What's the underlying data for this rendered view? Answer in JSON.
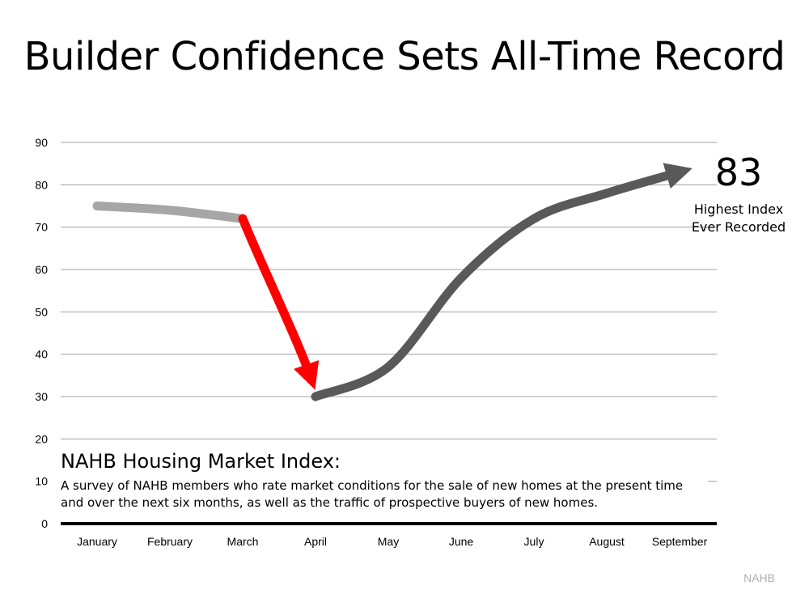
{
  "title": "Builder Confidence Sets All-Time Record",
  "callout": {
    "value": "83",
    "line1": "Highest Index",
    "line2": "Ever Recorded"
  },
  "description": {
    "heading": "NAHB Housing Market Index:",
    "body": "A survey of NAHB members who rate market conditions for the sale of new homes at the present time and over the next six months, as well as the traffic of prospective buyers of new homes."
  },
  "source": "NAHB",
  "chart_data": {
    "type": "line",
    "title": "Builder Confidence Sets All-Time Record",
    "categories": [
      "January",
      "February",
      "March",
      "April",
      "May",
      "June",
      "July",
      "August",
      "September"
    ],
    "yticks": [
      "0",
      "10",
      "20",
      "30",
      "40",
      "50",
      "60",
      "70",
      "80",
      "90"
    ],
    "ylim": [
      0,
      90
    ],
    "grid": true,
    "series": [
      {
        "values": [
          75,
          74,
          72,
          30,
          37,
          58,
          72,
          78,
          83
        ]
      }
    ],
    "colors": {
      "decline": "#ff0000",
      "early": "#a6a6a6",
      "recovery": "#595959"
    }
  }
}
